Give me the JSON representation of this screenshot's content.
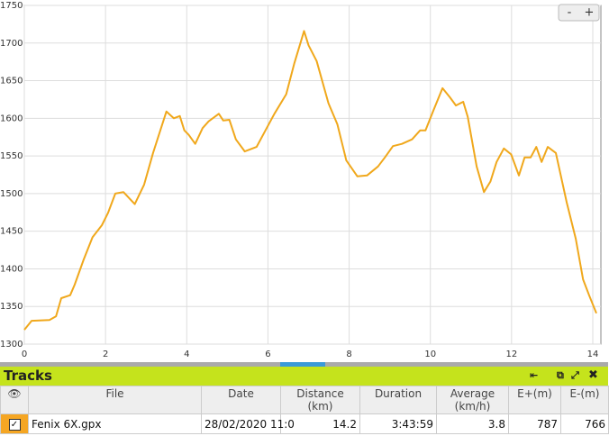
{
  "chart_data": {
    "type": "line",
    "x": [
      0,
      0.18,
      0.62,
      0.78,
      0.91,
      1.13,
      1.24,
      1.46,
      1.68,
      1.91,
      2.06,
      2.24,
      2.44,
      2.72,
      2.95,
      3.17,
      3.5,
      3.68,
      3.83,
      3.94,
      4.05,
      4.21,
      4.39,
      4.54,
      4.79,
      4.9,
      5.05,
      5.21,
      5.43,
      5.72,
      5.94,
      6.16,
      6.45,
      6.65,
      6.89,
      7.0,
      7.2,
      7.49,
      7.71,
      7.93,
      8.2,
      8.44,
      8.71,
      8.88,
      9.08,
      9.3,
      9.55,
      9.75,
      9.88,
      10.08,
      10.3,
      10.48,
      10.63,
      10.81,
      10.92,
      11.14,
      11.32,
      11.48,
      11.63,
      11.81,
      11.99,
      12.18,
      12.32,
      12.47,
      12.61,
      12.74,
      12.89,
      13.09,
      13.36,
      13.58,
      13.76,
      13.91,
      14.09
    ],
    "values": [
      1319,
      1331,
      1332,
      1337,
      1361,
      1365,
      1379,
      1412,
      1442,
      1458,
      1474,
      1500,
      1502,
      1486,
      1512,
      1554,
      1609,
      1600,
      1603,
      1584,
      1578,
      1566,
      1587,
      1596,
      1606,
      1597,
      1598,
      1572,
      1556,
      1562,
      1584,
      1606,
      1632,
      1673,
      1716,
      1697,
      1676,
      1620,
      1592,
      1544,
      1523,
      1524,
      1536,
      1548,
      1563,
      1566,
      1572,
      1584,
      1584,
      1611,
      1640,
      1628,
      1617,
      1622,
      1602,
      1536,
      1502,
      1516,
      1542,
      1560,
      1552,
      1524,
      1548,
      1548,
      1562,
      1542,
      1562,
      1554,
      1488,
      1440,
      1386,
      1365,
      1341
    ],
    "color": "#f0a81c",
    "xlim": [
      0,
      14.2
    ],
    "xticks": [
      0,
      2,
      4,
      6,
      8,
      10,
      12,
      14
    ],
    "ylim": [
      1300,
      1750
    ],
    "yticks": [
      1300,
      1350,
      1400,
      1450,
      1500,
      1550,
      1600,
      1650,
      1700,
      1750
    ],
    "grid": true,
    "zoom_controls": [
      "-",
      "+"
    ]
  },
  "tracks": {
    "title": "Tracks",
    "columns": [
      "File",
      "Date",
      "Distance\n(km)",
      "Duration",
      "Average\n(km/h)",
      "E+(m)",
      "E-(m)"
    ],
    "rows": [
      [
        "Fenix 6X.gpx",
        "28/02/2020 11:0",
        "14.2",
        "3:43:59",
        "3.8",
        "787",
        "766"
      ]
    ]
  }
}
